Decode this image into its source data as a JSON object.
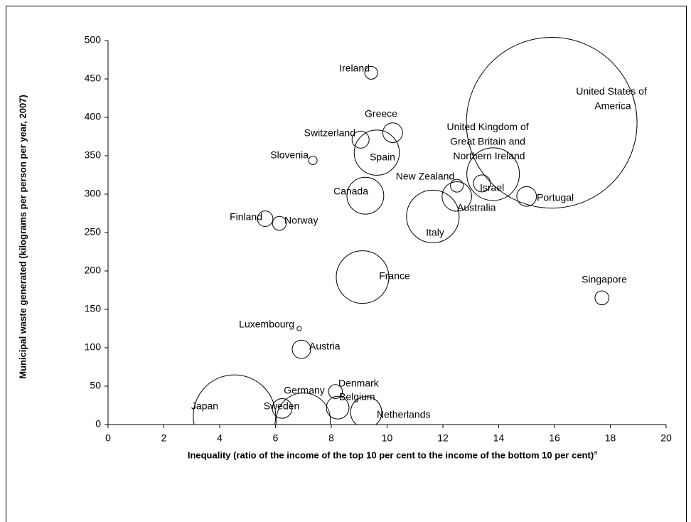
{
  "chart_data": {
    "type": "bubble",
    "x_label": "Inequality  (ratio of the income of the top 10 per cent to the income of the bottom 10 per cent)",
    "x_label_note": "a",
    "y_label": "Municipal waste generated (kilograms per person per year, 2007)",
    "xlim": [
      0,
      20
    ],
    "xticks": [
      0,
      2,
      4,
      6,
      8,
      10,
      12,
      14,
      16,
      18,
      20
    ],
    "ylim": [
      0,
      500
    ],
    "yticks": [
      0,
      50,
      100,
      150,
      200,
      250,
      300,
      350,
      400,
      450,
      500
    ],
    "color": "#000000",
    "labels": [
      "Ireland",
      "United States of America",
      "Greece",
      "Switzerland",
      "Slovenia",
      "Spain",
      "United Kingdom of Great Britain and Northern Ireland",
      "New Zealand",
      "Israel",
      "Canada",
      "Australia",
      "Portugal",
      "Italy",
      "Finland",
      "Norway",
      "France",
      "Singapore",
      "Luxembourg",
      "Austria",
      "Denmark",
      "Belgium",
      "Germany",
      "Sweden",
      "Japan",
      "Netherlands"
    ],
    "x": [
      9.43,
      15.9,
      10.2,
      9.05,
      7.34,
      9.63,
      13.8,
      12.5,
      13.4,
      9.22,
      12.5,
      15.0,
      11.64,
      5.63,
      6.14,
      9.12,
      17.7,
      6.85,
      6.93,
      8.15,
      8.23,
      7.0,
      6.24,
      4.53,
      9.25
    ],
    "values": [
      458,
      393,
      380,
      371,
      344,
      354,
      326,
      311,
      314,
      298,
      297,
      297,
      271,
      268,
      262,
      192,
      165,
      125,
      98,
      43,
      22,
      6,
      21,
      11,
      16
    ],
    "sizes": [
      1.7,
      300,
      4,
      3,
      0.75,
      21,
      28.5,
      1.7,
      3,
      14,
      9,
      4,
      28.5,
      2.5,
      2,
      28.5,
      2,
      0.2,
      3.5,
      2,
      5.3,
      30,
      4,
      70,
      10
    ]
  }
}
